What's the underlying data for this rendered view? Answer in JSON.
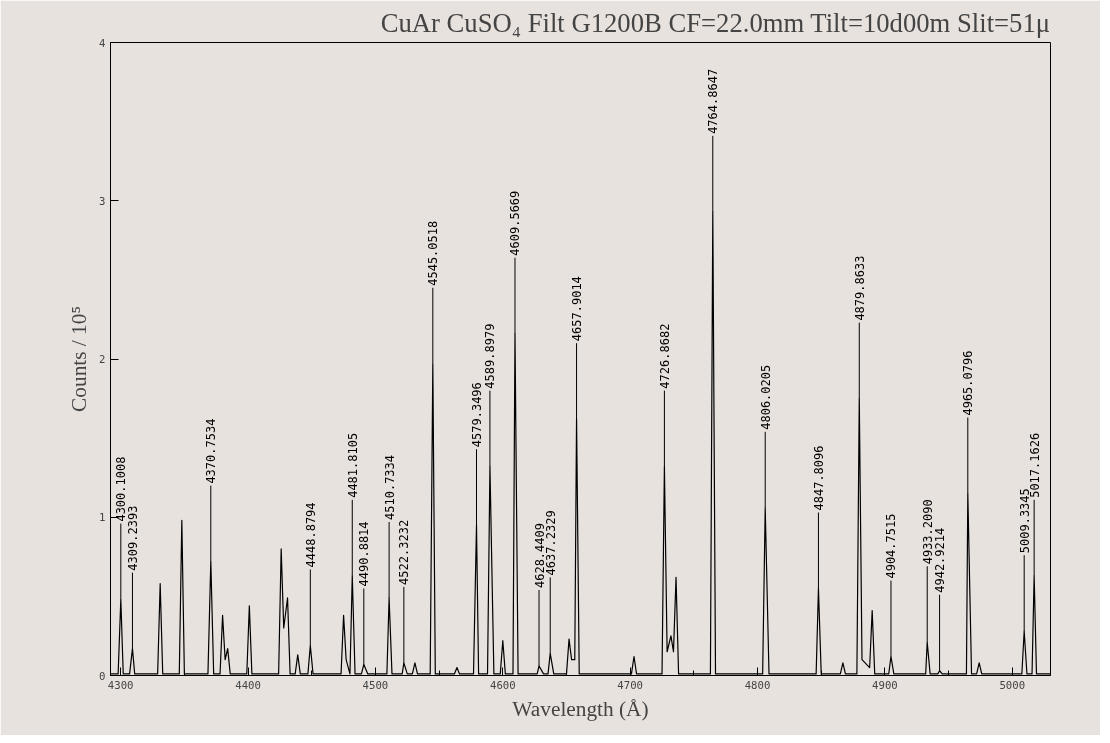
{
  "chart_data": {
    "type": "line",
    "title": "CuAr CuSO₄ Filt G1200B CF=22.0mm Tilt=10d00m Slit=51μ",
    "xlabel": "Wavelength (Å)",
    "ylabel": "Counts / 10⁵",
    "xlim": [
      4292,
      5030
    ],
    "ylim": [
      0,
      4
    ],
    "xticks": [
      4300,
      4400,
      4500,
      4600,
      4700,
      4800,
      4900,
      5000
    ],
    "yticks": [
      0,
      1,
      2,
      3,
      4
    ],
    "grid": false,
    "series": [
      {
        "color": "#000000",
        "x": [
          4292,
          4298,
          4300.1008,
          4302,
          4307,
          4309.2393,
          4311,
          4329,
          4331,
          4333,
          4346,
          4348,
          4350,
          4368.5,
          4370.7534,
          4373,
          4378,
          4380,
          4382,
          4384,
          4386,
          4399,
          4401,
          4403,
          4424,
          4426,
          4428,
          4431,
          4433,
          4437,
          4439,
          4441,
          4447,
          4448.8794,
          4451,
          4473,
          4475,
          4477,
          4480,
          4481.8105,
          4484,
          4489,
          4490.8814,
          4494,
          4509,
          4510.7334,
          4513,
          4521,
          4522.3232,
          4525,
          4529,
          4531,
          4533,
          4543,
          4545.0518,
          4547,
          4562,
          4564,
          4566,
          4577,
          4579.3496,
          4581,
          4588,
          4589.8979,
          4593,
          4598,
          4600,
          4602,
          4608,
          4609.5669,
          4612,
          4627,
          4628.4409,
          4632,
          4635.5,
          4637.2329,
          4640,
          4650,
          4652,
          4654,
          4656.5,
          4657.9014,
          4660,
          4701,
          4703,
          4705,
          4725,
          4726.8682,
          4729,
          4732,
          4734,
          4736,
          4738,
          4763,
          4764.8647,
          4767,
          4804,
          4806.0205,
          4809,
          4846,
          4847.8096,
          4850,
          4865,
          4867,
          4869,
          4878,
          4879.8633,
          4882,
          4888,
          4890,
          4892,
          4903,
          4904.7515,
          4907,
          4932,
          4933.209,
          4935.5,
          4941.5,
          4942.9214,
          4945,
          4964,
          4965.0796,
          4968,
          4972,
          4974,
          4976,
          5007.5,
          5009.3345,
          5011.5,
          5015.5,
          5017.1626,
          5019,
          5030
        ],
        "values": [
          0.01,
          0.01,
          0.48,
          0.01,
          0.01,
          0.17,
          0.01,
          0.01,
          0.58,
          0.01,
          0.01,
          0.98,
          0.01,
          0.01,
          0.72,
          0.01,
          0.01,
          0.38,
          0.1,
          0.17,
          0.01,
          0.01,
          0.44,
          0.01,
          0.01,
          0.8,
          0.3,
          0.49,
          0.01,
          0.01,
          0.13,
          0.01,
          0.01,
          0.19,
          0.01,
          0.01,
          0.38,
          0.1,
          0.01,
          0.63,
          0.01,
          0.01,
          0.07,
          0.01,
          0.01,
          0.49,
          0.01,
          0.01,
          0.08,
          0.01,
          0.01,
          0.08,
          0.01,
          0.01,
          1.97,
          0.01,
          0.01,
          0.05,
          0.01,
          0.01,
          0.95,
          0.01,
          0.01,
          1.32,
          0.01,
          0.01,
          0.22,
          0.01,
          0.01,
          2.16,
          0.01,
          0.01,
          0.06,
          0.01,
          0.01,
          0.14,
          0.01,
          0.01,
          0.23,
          0.1,
          0.1,
          1.62,
          0.01,
          0.01,
          0.12,
          0.01,
          0.01,
          1.32,
          0.15,
          0.25,
          0.15,
          0.62,
          0.01,
          0.01,
          2.93,
          0.01,
          0.01,
          1.06,
          0.01,
          0.01,
          0.55,
          0.01,
          0.01,
          0.08,
          0.01,
          0.01,
          1.75,
          0.1,
          0.05,
          0.41,
          0.01,
          0.01,
          0.12,
          0.01,
          0.01,
          0.21,
          0.01,
          0.01,
          0.03,
          0.01,
          0.01,
          1.15,
          0.01,
          0.01,
          0.08,
          0.01,
          0.01,
          0.28,
          0.01,
          0.01,
          0.63,
          0.01,
          0.01
        ]
      }
    ],
    "annotations": [
      {
        "text": "4300.1008",
        "x": 4300.1008,
        "y": 0.48
      },
      {
        "text": "4309.2393",
        "x": 4309.2393,
        "y": 0.17
      },
      {
        "text": "4370.7534",
        "x": 4370.7534,
        "y": 0.72
      },
      {
        "text": "4448.8794",
        "x": 4448.8794,
        "y": 0.19
      },
      {
        "text": "4481.8105",
        "x": 4481.8105,
        "y": 0.63
      },
      {
        "text": "4490.8814",
        "x": 4490.8814,
        "y": 0.07
      },
      {
        "text": "4510.7334",
        "x": 4510.7334,
        "y": 0.49
      },
      {
        "text": "4522.3232",
        "x": 4522.3232,
        "y": 0.08
      },
      {
        "text": "4545.0518",
        "x": 4545.0518,
        "y": 1.97
      },
      {
        "text": "4579.3496",
        "x": 4579.3496,
        "y": 0.95
      },
      {
        "text": "4589.8979",
        "x": 4589.8979,
        "y": 1.32
      },
      {
        "text": "4609.5669",
        "x": 4609.5669,
        "y": 2.16
      },
      {
        "text": "4628.4409",
        "x": 4628.4409,
        "y": 0.06
      },
      {
        "text": "4637.2329",
        "x": 4637.2329,
        "y": 0.14
      },
      {
        "text": "4657.9014",
        "x": 4657.9014,
        "y": 1.62
      },
      {
        "text": "4726.8682",
        "x": 4726.8682,
        "y": 1.32
      },
      {
        "text": "4764.8647",
        "x": 4764.8647,
        "y": 2.93
      },
      {
        "text": "4806.0205",
        "x": 4806.0205,
        "y": 1.06
      },
      {
        "text": "4847.8096",
        "x": 4847.8096,
        "y": 0.55
      },
      {
        "text": "4879.8633",
        "x": 4879.8633,
        "y": 1.75
      },
      {
        "text": "4904.7515",
        "x": 4904.7515,
        "y": 0.12
      },
      {
        "text": "4933.2090",
        "x": 4933.209,
        "y": 0.21
      },
      {
        "text": "4942.9214",
        "x": 4942.9214,
        "y": 0.03
      },
      {
        "text": "4965.0796",
        "x": 4965.0796,
        "y": 1.15
      },
      {
        "text": "5009.3345",
        "x": 5009.3345,
        "y": 0.28
      },
      {
        "text": "5017.1626",
        "x": 5017.1626,
        "y": 0.63
      }
    ]
  }
}
